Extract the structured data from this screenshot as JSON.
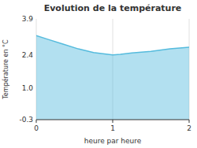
{
  "chart_data": {
    "type": "area",
    "title": "Evolution de la température",
    "x_label": "heure par heure",
    "y_label": "Température en °C",
    "x": [
      0,
      0.15,
      0.35,
      0.55,
      0.75,
      1.0,
      1.1,
      1.25,
      1.5,
      1.75,
      2.0
    ],
    "y": [
      3.2,
      3.05,
      2.85,
      2.65,
      2.5,
      2.4,
      2.42,
      2.48,
      2.55,
      2.65,
      2.72
    ],
    "color": "#55bbdd",
    "xlim": [
      0,
      2
    ],
    "ylim": [
      -0.3,
      3.9
    ],
    "xticks": [
      0,
      1,
      2
    ],
    "yticks": [
      -0.3,
      {
        "value": 1.0,
        "label": "1.0"
      },
      2.4,
      3.9
    ],
    "grid": "x"
  }
}
